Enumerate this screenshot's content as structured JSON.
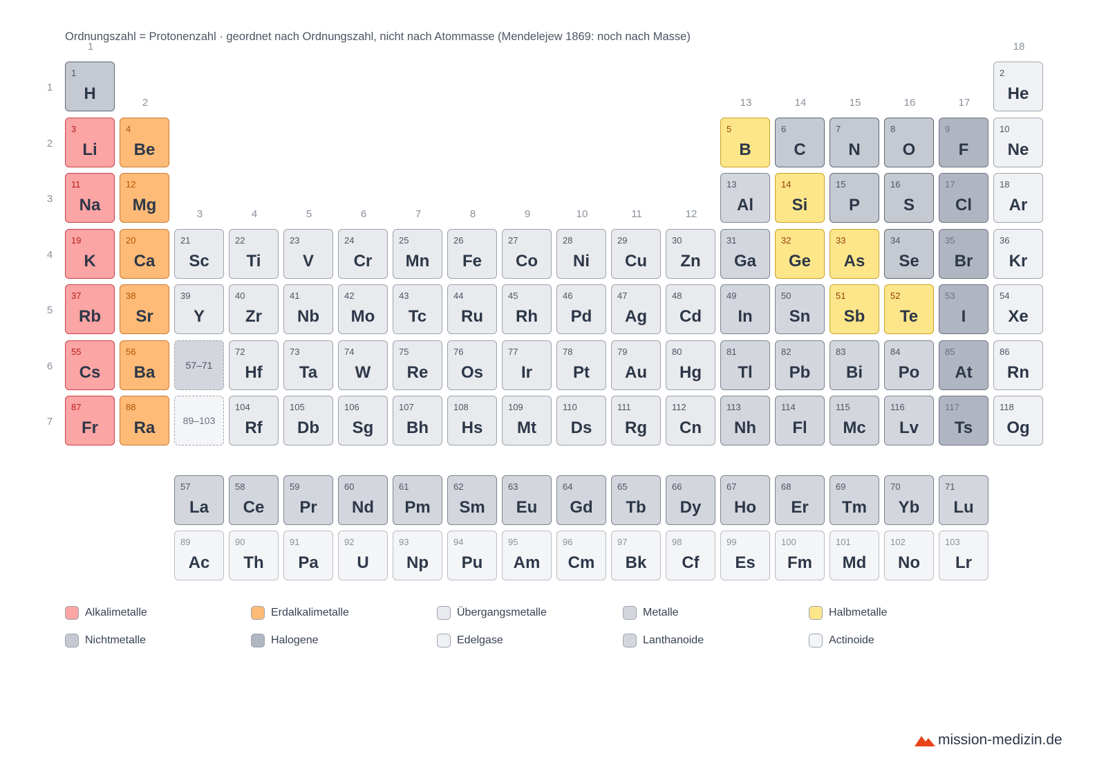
{
  "caption": "Ordnungszahl = Protonenzahl · geordnet nach Ordnungszahl, nicht nach Atommasse (Mendelejew 1869: noch nach Masse)",
  "group_labels": [
    "1",
    "2",
    "3",
    "4",
    "5",
    "6",
    "7",
    "8",
    "9",
    "10",
    "11",
    "12",
    "13",
    "14",
    "15",
    "16",
    "17",
    "18"
  ],
  "period_labels": [
    "1",
    "2",
    "3",
    "4",
    "5",
    "6",
    "7"
  ],
  "category_colors": {
    "alkali": "#fca5a5",
    "earth": "#fdbb77",
    "trans": "#e8eaed",
    "metal": "#d3d6dd",
    "metalloid": "#fde68a",
    "nonmetal": "#c4c9d2",
    "halogen": "#b0b6c1",
    "noble": "#f0f1f4",
    "lanth": "#d3d6dd",
    "actin": "#f4f5f7"
  },
  "elements": [
    {
      "num": "1",
      "sym": "H",
      "cat": "nonmetal",
      "period": 1,
      "group": 1
    },
    {
      "num": "2",
      "sym": "He",
      "cat": "noble",
      "period": 1,
      "group": 18
    },
    {
      "num": "3",
      "sym": "Li",
      "cat": "alkali",
      "period": 2,
      "group": 1
    },
    {
      "num": "4",
      "sym": "Be",
      "cat": "earth",
      "period": 2,
      "group": 2
    },
    {
      "num": "5",
      "sym": "B",
      "cat": "metalloid",
      "period": 2,
      "group": 13
    },
    {
      "num": "6",
      "sym": "C",
      "cat": "nonmetal",
      "period": 2,
      "group": 14
    },
    {
      "num": "7",
      "sym": "N",
      "cat": "nonmetal",
      "period": 2,
      "group": 15
    },
    {
      "num": "8",
      "sym": "O",
      "cat": "nonmetal",
      "period": 2,
      "group": 16
    },
    {
      "num": "9",
      "sym": "F",
      "cat": "halogen",
      "period": 2,
      "group": 17
    },
    {
      "num": "10",
      "sym": "Ne",
      "cat": "noble",
      "period": 2,
      "group": 18
    },
    {
      "num": "11",
      "sym": "Na",
      "cat": "alkali",
      "period": 3,
      "group": 1
    },
    {
      "num": "12",
      "sym": "Mg",
      "cat": "earth",
      "period": 3,
      "group": 2
    },
    {
      "num": "13",
      "sym": "Al",
      "cat": "metal",
      "period": 3,
      "group": 13
    },
    {
      "num": "14",
      "sym": "Si",
      "cat": "metalloid",
      "period": 3,
      "group": 14
    },
    {
      "num": "15",
      "sym": "P",
      "cat": "nonmetal",
      "period": 3,
      "group": 15
    },
    {
      "num": "16",
      "sym": "S",
      "cat": "nonmetal",
      "period": 3,
      "group": 16
    },
    {
      "num": "17",
      "sym": "Cl",
      "cat": "halogen",
      "period": 3,
      "group": 17
    },
    {
      "num": "18",
      "sym": "Ar",
      "cat": "noble",
      "period": 3,
      "group": 18
    },
    {
      "num": "19",
      "sym": "K",
      "cat": "alkali",
      "period": 4,
      "group": 1
    },
    {
      "num": "20",
      "sym": "Ca",
      "cat": "earth",
      "period": 4,
      "group": 2
    },
    {
      "num": "21",
      "sym": "Sc",
      "cat": "trans",
      "period": 4,
      "group": 3
    },
    {
      "num": "22",
      "sym": "Ti",
      "cat": "trans",
      "period": 4,
      "group": 4
    },
    {
      "num": "23",
      "sym": "V",
      "cat": "trans",
      "period": 4,
      "group": 5
    },
    {
      "num": "24",
      "sym": "Cr",
      "cat": "trans",
      "period": 4,
      "group": 6
    },
    {
      "num": "25",
      "sym": "Mn",
      "cat": "trans",
      "period": 4,
      "group": 7
    },
    {
      "num": "26",
      "sym": "Fe",
      "cat": "trans",
      "period": 4,
      "group": 8
    },
    {
      "num": "27",
      "sym": "Co",
      "cat": "trans",
      "period": 4,
      "group": 9
    },
    {
      "num": "28",
      "sym": "Ni",
      "cat": "trans",
      "period": 4,
      "group": 10
    },
    {
      "num": "29",
      "sym": "Cu",
      "cat": "trans",
      "period": 4,
      "group": 11
    },
    {
      "num": "30",
      "sym": "Zn",
      "cat": "trans",
      "period": 4,
      "group": 12
    },
    {
      "num": "31",
      "sym": "Ga",
      "cat": "metal",
      "period": 4,
      "group": 13
    },
    {
      "num": "32",
      "sym": "Ge",
      "cat": "metalloid",
      "period": 4,
      "group": 14
    },
    {
      "num": "33",
      "sym": "As",
      "cat": "metalloid",
      "period": 4,
      "group": 15
    },
    {
      "num": "34",
      "sym": "Se",
      "cat": "nonmetal",
      "period": 4,
      "group": 16
    },
    {
      "num": "35",
      "sym": "Br",
      "cat": "halogen",
      "period": 4,
      "group": 17
    },
    {
      "num": "36",
      "sym": "Kr",
      "cat": "noble",
      "period": 4,
      "group": 18
    },
    {
      "num": "37",
      "sym": "Rb",
      "cat": "alkali",
      "period": 5,
      "group": 1
    },
    {
      "num": "38",
      "sym": "Sr",
      "cat": "earth",
      "period": 5,
      "group": 2
    },
    {
      "num": "39",
      "sym": "Y",
      "cat": "trans",
      "period": 5,
      "group": 3
    },
    {
      "num": "40",
      "sym": "Zr",
      "cat": "trans",
      "period": 5,
      "group": 4
    },
    {
      "num": "41",
      "sym": "Nb",
      "cat": "trans",
      "period": 5,
      "group": 5
    },
    {
      "num": "42",
      "sym": "Mo",
      "cat": "trans",
      "period": 5,
      "group": 6
    },
    {
      "num": "43",
      "sym": "Tc",
      "cat": "trans",
      "period": 5,
      "group": 7
    },
    {
      "num": "44",
      "sym": "Ru",
      "cat": "trans",
      "period": 5,
      "group": 8
    },
    {
      "num": "45",
      "sym": "Rh",
      "cat": "trans",
      "period": 5,
      "group": 9
    },
    {
      "num": "46",
      "sym": "Pd",
      "cat": "trans",
      "period": 5,
      "group": 10
    },
    {
      "num": "47",
      "sym": "Ag",
      "cat": "trans",
      "period": 5,
      "group": 11
    },
    {
      "num": "48",
      "sym": "Cd",
      "cat": "trans",
      "period": 5,
      "group": 12
    },
    {
      "num": "49",
      "sym": "In",
      "cat": "metal",
      "period": 5,
      "group": 13
    },
    {
      "num": "50",
      "sym": "Sn",
      "cat": "metal",
      "period": 5,
      "group": 14
    },
    {
      "num": "51",
      "sym": "Sb",
      "cat": "metalloid",
      "period": 5,
      "group": 15
    },
    {
      "num": "52",
      "sym": "Te",
      "cat": "metalloid",
      "period": 5,
      "group": 16
    },
    {
      "num": "53",
      "sym": "I",
      "cat": "halogen",
      "period": 5,
      "group": 17
    },
    {
      "num": "54",
      "sym": "Xe",
      "cat": "noble",
      "period": 5,
      "group": 18
    },
    {
      "num": "55",
      "sym": "Cs",
      "cat": "alkali",
      "period": 6,
      "group": 1
    },
    {
      "num": "56",
      "sym": "Ba",
      "cat": "earth",
      "period": 6,
      "group": 2
    },
    {
      "num": "72",
      "sym": "Hf",
      "cat": "trans",
      "period": 6,
      "group": 4
    },
    {
      "num": "73",
      "sym": "Ta",
      "cat": "trans",
      "period": 6,
      "group": 5
    },
    {
      "num": "74",
      "sym": "W",
      "cat": "trans",
      "period": 6,
      "group": 6
    },
    {
      "num": "75",
      "sym": "Re",
      "cat": "trans",
      "period": 6,
      "group": 7
    },
    {
      "num": "76",
      "sym": "Os",
      "cat": "trans",
      "period": 6,
      "group": 8
    },
    {
      "num": "77",
      "sym": "Ir",
      "cat": "trans",
      "period": 6,
      "group": 9
    },
    {
      "num": "78",
      "sym": "Pt",
      "cat": "trans",
      "period": 6,
      "group": 10
    },
    {
      "num": "79",
      "sym": "Au",
      "cat": "trans",
      "period": 6,
      "group": 11
    },
    {
      "num": "80",
      "sym": "Hg",
      "cat": "trans",
      "period": 6,
      "group": 12
    },
    {
      "num": "81",
      "sym": "Tl",
      "cat": "metal",
      "period": 6,
      "group": 13
    },
    {
      "num": "82",
      "sym": "Pb",
      "cat": "metal",
      "period": 6,
      "group": 14
    },
    {
      "num": "83",
      "sym": "Bi",
      "cat": "metal",
      "period": 6,
      "group": 15
    },
    {
      "num": "84",
      "sym": "Po",
      "cat": "metal",
      "period": 6,
      "group": 16
    },
    {
      "num": "85",
      "sym": "At",
      "cat": "halogen",
      "period": 6,
      "group": 17
    },
    {
      "num": "86",
      "sym": "Rn",
      "cat": "noble",
      "period": 6,
      "group": 18
    },
    {
      "num": "87",
      "sym": "Fr",
      "cat": "alkali",
      "period": 7,
      "group": 1
    },
    {
      "num": "88",
      "sym": "Ra",
      "cat": "earth",
      "period": 7,
      "group": 2
    },
    {
      "num": "104",
      "sym": "Rf",
      "cat": "trans",
      "period": 7,
      "group": 4
    },
    {
      "num": "105",
      "sym": "Db",
      "cat": "trans",
      "period": 7,
      "group": 5
    },
    {
      "num": "106",
      "sym": "Sg",
      "cat": "trans",
      "period": 7,
      "group": 6
    },
    {
      "num": "107",
      "sym": "Bh",
      "cat": "trans",
      "period": 7,
      "group": 7
    },
    {
      "num": "108",
      "sym": "Hs",
      "cat": "trans",
      "period": 7,
      "group": 8
    },
    {
      "num": "109",
      "sym": "Mt",
      "cat": "trans",
      "period": 7,
      "group": 9
    },
    {
      "num": "110",
      "sym": "Ds",
      "cat": "trans",
      "period": 7,
      "group": 10
    },
    {
      "num": "111",
      "sym": "Rg",
      "cat": "trans",
      "period": 7,
      "group": 11
    },
    {
      "num": "112",
      "sym": "Cn",
      "cat": "trans",
      "period": 7,
      "group": 12
    },
    {
      "num": "113",
      "sym": "Nh",
      "cat": "metal",
      "period": 7,
      "group": 13
    },
    {
      "num": "114",
      "sym": "Fl",
      "cat": "metal",
      "period": 7,
      "group": 14
    },
    {
      "num": "115",
      "sym": "Mc",
      "cat": "metal",
      "period": 7,
      "group": 15
    },
    {
      "num": "116",
      "sym": "Lv",
      "cat": "metal",
      "period": 7,
      "group": 16
    },
    {
      "num": "117",
      "sym": "Ts",
      "cat": "halogen",
      "period": 7,
      "group": 17
    },
    {
      "num": "118",
      "sym": "Og",
      "cat": "noble",
      "period": 7,
      "group": 18
    }
  ],
  "placeholders": [
    {
      "label": "57–71",
      "period": 6,
      "group": 3,
      "cat": "lanth"
    },
    {
      "label": "89–103",
      "period": 7,
      "group": 3,
      "cat": "actin"
    }
  ],
  "lanthanides": [
    {
      "num": "57",
      "sym": "La"
    },
    {
      "num": "58",
      "sym": "Ce"
    },
    {
      "num": "59",
      "sym": "Pr"
    },
    {
      "num": "60",
      "sym": "Nd"
    },
    {
      "num": "61",
      "sym": "Pm"
    },
    {
      "num": "62",
      "sym": "Sm"
    },
    {
      "num": "63",
      "sym": "Eu"
    },
    {
      "num": "64",
      "sym": "Gd"
    },
    {
      "num": "65",
      "sym": "Tb"
    },
    {
      "num": "66",
      "sym": "Dy"
    },
    {
      "num": "67",
      "sym": "Ho"
    },
    {
      "num": "68",
      "sym": "Er"
    },
    {
      "num": "69",
      "sym": "Tm"
    },
    {
      "num": "70",
      "sym": "Yb"
    },
    {
      "num": "71",
      "sym": "Lu"
    }
  ],
  "actinides": [
    {
      "num": "89",
      "sym": "Ac"
    },
    {
      "num": "90",
      "sym": "Th"
    },
    {
      "num": "91",
      "sym": "Pa"
    },
    {
      "num": "92",
      "sym": "U"
    },
    {
      "num": "93",
      "sym": "Np"
    },
    {
      "num": "94",
      "sym": "Pu"
    },
    {
      "num": "95",
      "sym": "Am"
    },
    {
      "num": "96",
      "sym": "Cm"
    },
    {
      "num": "97",
      "sym": "Bk"
    },
    {
      "num": "98",
      "sym": "Cf"
    },
    {
      "num": "99",
      "sym": "Es"
    },
    {
      "num": "100",
      "sym": "Fm"
    },
    {
      "num": "101",
      "sym": "Md"
    },
    {
      "num": "102",
      "sym": "No"
    },
    {
      "num": "103",
      "sym": "Lr"
    }
  ],
  "legend": [
    {
      "label": "Alkalimetalle",
      "cat": "alkali"
    },
    {
      "label": "Erdalkalimetalle",
      "cat": "earth"
    },
    {
      "label": "Übergangsmetalle",
      "cat": "trans"
    },
    {
      "label": "Metalle",
      "cat": "metal"
    },
    {
      "label": "Halbmetalle",
      "cat": "metalloid"
    },
    {
      "label": "Nichtmetalle",
      "cat": "nonmetal"
    },
    {
      "label": "Halogene",
      "cat": "halogen"
    },
    {
      "label": "Edelgase",
      "cat": "noble"
    },
    {
      "label": "Lanthanoide",
      "cat": "lanth"
    },
    {
      "label": "Actinoide",
      "cat": "actin"
    }
  ],
  "brand": {
    "text": "mission-medizin.de",
    "logo_icon": "mountain-logo-icon",
    "logo_color": "#e8441a"
  }
}
